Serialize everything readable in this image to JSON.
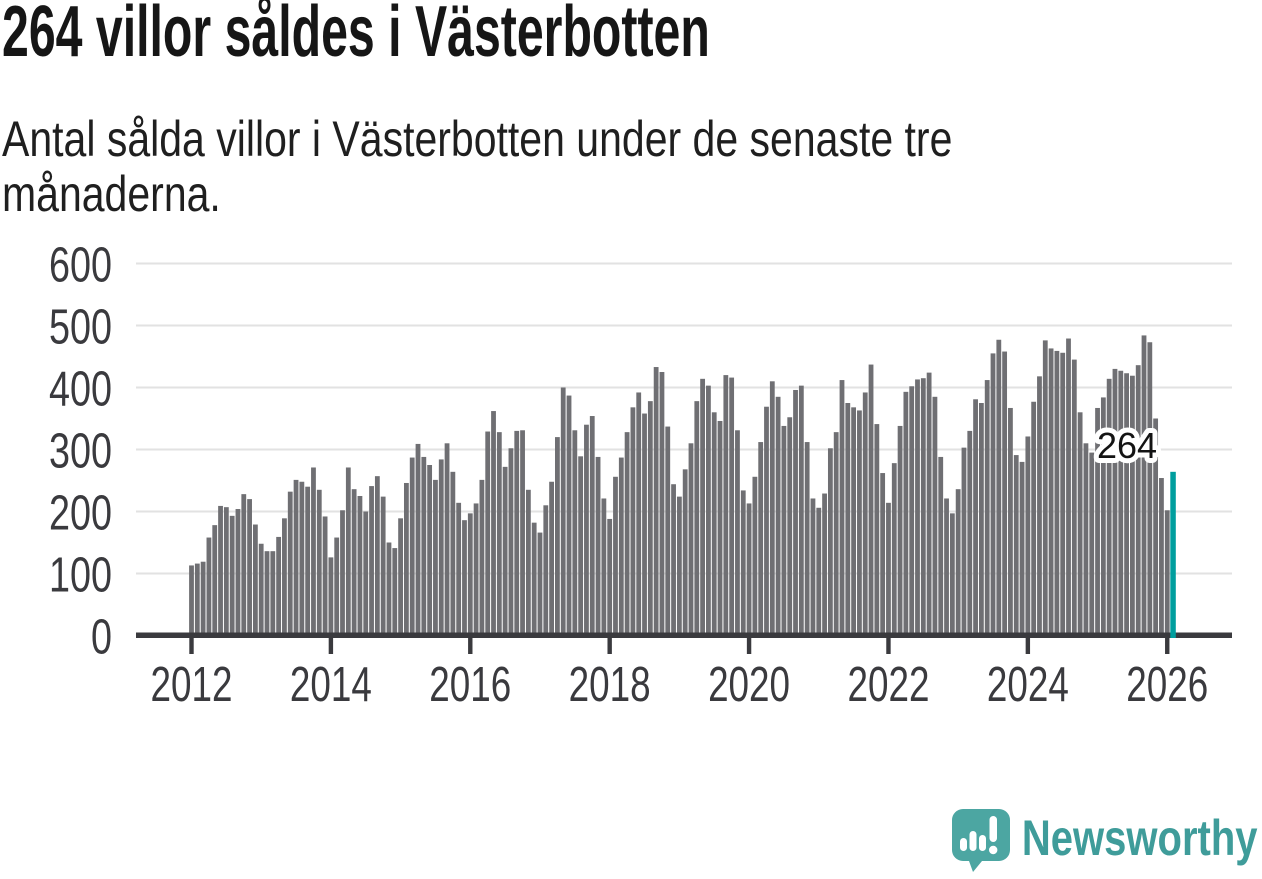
{
  "header": {
    "title": "264 villor såldes i Västerbotten"
  },
  "subtitle": {
    "line1": "Antal sålda villor i Västerbotten under de senaste tre",
    "line2": "månaderna."
  },
  "footer": {
    "brand": "Newsworthy"
  },
  "colors": {
    "bar": "#6f6f73",
    "highlight": "#009e9e",
    "axis": "#3a3a3e",
    "gridline": "#e2e2e2",
    "logo_teal": "#4ca6a2",
    "brand_text_teal": "#3f9c9a"
  },
  "chart_data": {
    "type": "bar",
    "title": "264 villor såldes i Västerbotten",
    "subtitle": "Antal sålda villor i Västerbotten under de senaste tre månaderna.",
    "xlabel": "",
    "ylabel": "",
    "ylim": [
      0,
      600
    ],
    "y_ticks": [
      0,
      100,
      200,
      300,
      400,
      500,
      600
    ],
    "grid": true,
    "x_start_year": 2012,
    "x_tick_labels": [
      "2012",
      "2014",
      "2016",
      "2018",
      "2020",
      "2022",
      "2024",
      "2026"
    ],
    "values": [
      113,
      116,
      119,
      158,
      178,
      209,
      207,
      193,
      204,
      228,
      220,
      179,
      148,
      136,
      136,
      159,
      189,
      232,
      251,
      248,
      240,
      271,
      235,
      192,
      126,
      158,
      202,
      271,
      236,
      225,
      200,
      241,
      257,
      224,
      150,
      141,
      189,
      246,
      287,
      309,
      288,
      275,
      251,
      284,
      310,
      264,
      214,
      186,
      197,
      213,
      251,
      329,
      362,
      328,
      272,
      302,
      330,
      331,
      235,
      182,
      166,
      210,
      248,
      320,
      400,
      387,
      331,
      289,
      340,
      354,
      288,
      221,
      188,
      256,
      287,
      328,
      368,
      392,
      358,
      378,
      433,
      425,
      337,
      244,
      224,
      268,
      310,
      378,
      414,
      403,
      360,
      346,
      420,
      416,
      331,
      234,
      213,
      256,
      312,
      369,
      410,
      385,
      338,
      352,
      396,
      403,
      312,
      221,
      206,
      229,
      302,
      328,
      412,
      375,
      368,
      363,
      392,
      437,
      341,
      262,
      214,
      278,
      338,
      393,
      402,
      413,
      415,
      424,
      385,
      288,
      221,
      197,
      236,
      303,
      330,
      381,
      375,
      412,
      455,
      477,
      458,
      367,
      291,
      280,
      321,
      377,
      418,
      476,
      463,
      459,
      456,
      479,
      445,
      360,
      310,
      295,
      367,
      384,
      414,
      430,
      427,
      423,
      419,
      436,
      484,
      473,
      350,
      254,
      202,
      264
    ],
    "highlight": {
      "month_index": 169,
      "value": 264,
      "label": "264"
    },
    "legend": null
  }
}
